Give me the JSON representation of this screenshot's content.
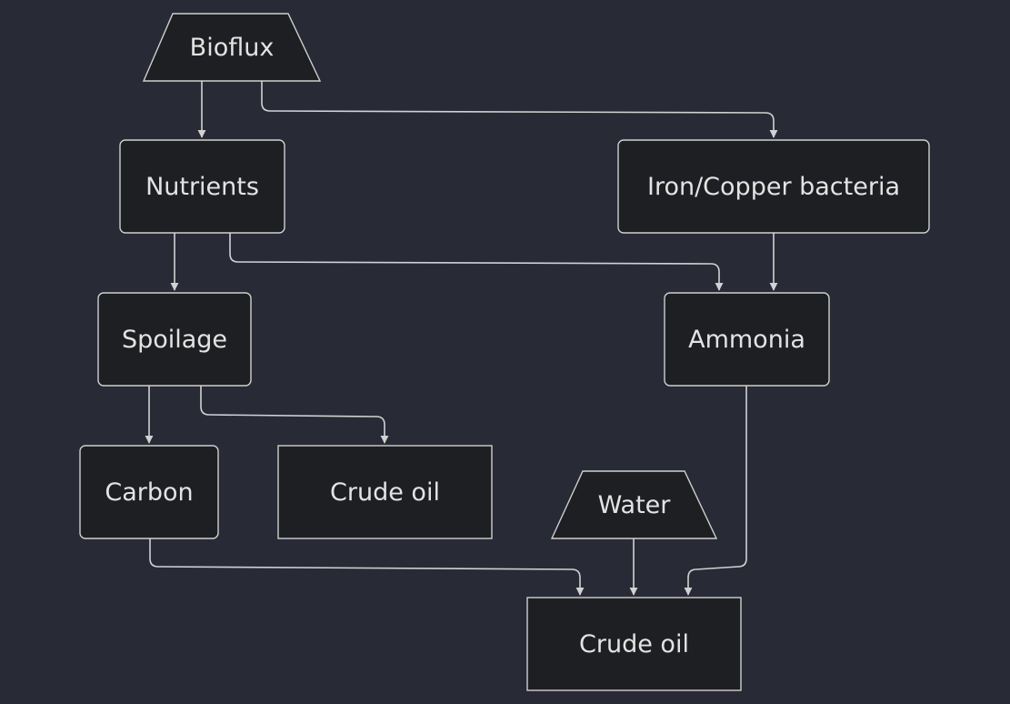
{
  "diagram": {
    "nodes": {
      "bioflux": "Bioflux",
      "nutrients": "Nutrients",
      "iron_copper_bacteria": "Iron/Copper bacteria",
      "spoilage": "Spoilage",
      "ammonia": "Ammonia",
      "carbon": "Carbon",
      "crude_oil_1": "Crude oil",
      "water": "Water",
      "crude_oil_2": "Crude oil"
    },
    "edges": [
      {
        "from": "Bioflux",
        "to": "Nutrients"
      },
      {
        "from": "Bioflux",
        "to": "Iron/Copper bacteria"
      },
      {
        "from": "Nutrients",
        "to": "Spoilage"
      },
      {
        "from": "Nutrients",
        "to": "Ammonia"
      },
      {
        "from": "Iron/Copper bacteria",
        "to": "Ammonia"
      },
      {
        "from": "Spoilage",
        "to": "Carbon"
      },
      {
        "from": "Spoilage",
        "to": "Crude oil"
      },
      {
        "from": "Carbon",
        "to": "Crude oil"
      },
      {
        "from": "Water",
        "to": "Crude oil"
      },
      {
        "from": "Ammonia",
        "to": "Crude oil"
      }
    ],
    "colors": {
      "background": "#282a36",
      "node_fill": "#1e1f22",
      "node_stroke": "#d0d0d0",
      "edge": "#d2d2d2",
      "text": "#e3e3e3"
    }
  }
}
